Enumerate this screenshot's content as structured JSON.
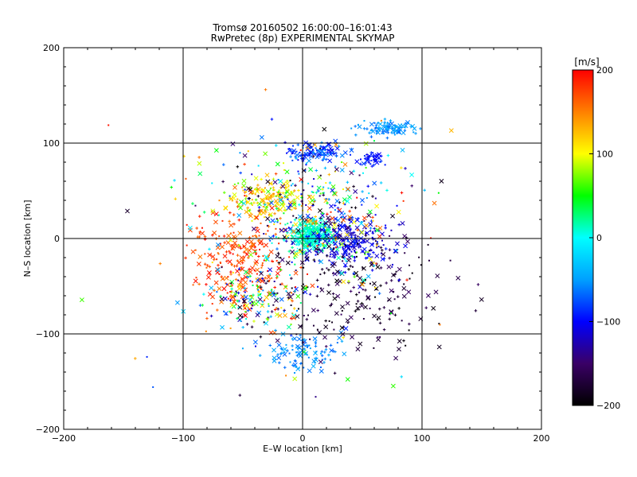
{
  "chart_data": {
    "type": "scatter",
    "title_line1": "Tromsø 20160502 16:00:00–16:01:43",
    "title_line2": "RwPretec (8p) EXPERIMENTAL SKYMAP",
    "xlabel": "E–W location [km]",
    "ylabel": "N–S location [km]",
    "xlim": [
      -200,
      200
    ],
    "ylim": [
      -200,
      200
    ],
    "xticks": [
      -200,
      -100,
      0,
      100,
      200
    ],
    "yticks": [
      -200,
      -100,
      0,
      100,
      200
    ],
    "grid_lines": [
      -100,
      0,
      100
    ],
    "colorbar": {
      "title": "[m/s]",
      "min": -200,
      "max": 200,
      "ticks": [
        200,
        100,
        0,
        -100,
        -200
      ],
      "stops": [
        "#000000",
        "#3a0066",
        "#0000ff",
        "#00a0ff",
        "#00ffff",
        "#00ff00",
        "#ffff00",
        "#ff8000",
        "#ff0000"
      ]
    },
    "clusters": [
      {
        "name": "center",
        "cx": 8,
        "cy": 3,
        "sx": 10,
        "sy": 8,
        "n": 300,
        "vmin": -10,
        "vmax": 30
      },
      {
        "name": "north-west-orange",
        "cx": -30,
        "cy": 40,
        "sx": 15,
        "sy": 10,
        "n": 160,
        "vmin": 60,
        "vmax": 150
      },
      {
        "name": "west-red",
        "cx": -55,
        "cy": -20,
        "sx": 20,
        "sy": 25,
        "n": 240,
        "vmin": 150,
        "vmax": 200
      },
      {
        "name": "south-west-mixed",
        "cx": -40,
        "cy": -65,
        "sx": 20,
        "sy": 15,
        "n": 160,
        "vmin": -200,
        "vmax": 200
      },
      {
        "name": "east-blue",
        "cx": 40,
        "cy": -5,
        "sx": 18,
        "sy": 12,
        "n": 200,
        "vmin": -130,
        "vmax": -90
      },
      {
        "name": "north-blue",
        "cx": 10,
        "cy": 90,
        "sx": 12,
        "sy": 5,
        "n": 100,
        "vmin": -110,
        "vmax": -50
      },
      {
        "name": "north-east-cyan",
        "cx": 70,
        "cy": 115,
        "sx": 12,
        "sy": 4,
        "n": 90,
        "vmin": -70,
        "vmax": -40
      },
      {
        "name": "north-east-blue",
        "cx": 58,
        "cy": 83,
        "sx": 6,
        "sy": 4,
        "n": 40,
        "vmin": -110,
        "vmax": -80
      },
      {
        "name": "south-cyan",
        "cx": 0,
        "cy": -120,
        "sx": 15,
        "sy": 10,
        "n": 100,
        "vmin": -70,
        "vmax": -40
      },
      {
        "name": "south-black",
        "cx": 40,
        "cy": -55,
        "sx": 40,
        "sy": 35,
        "n": 220,
        "vmin": -200,
        "vmax": -150
      },
      {
        "name": "center-mixed",
        "cx": 10,
        "cy": 30,
        "sx": 30,
        "sy": 30,
        "n": 280,
        "vmin": -200,
        "vmax": 200
      },
      {
        "name": "scattered",
        "cx": 0,
        "cy": 0,
        "sx": 65,
        "sy": 70,
        "n": 200,
        "vmin": -200,
        "vmax": 200
      }
    ],
    "marker_styles": [
      "x",
      "+",
      "dot"
    ]
  }
}
